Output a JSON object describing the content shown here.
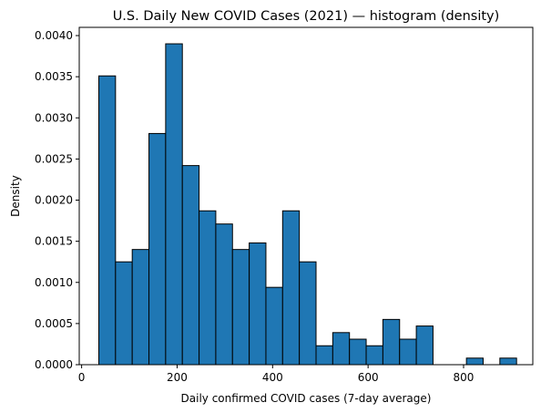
{
  "chart_data": {
    "type": "bar",
    "title": "U.S. Daily New COVID Cases (2021) — histogram (density)",
    "xlabel": "Daily confirmed COVID cases (7-day average)",
    "ylabel": "Density",
    "xlim": [
      -5,
      945
    ],
    "ylim": [
      0,
      0.0041
    ],
    "grid": false,
    "x_ticks": [
      {
        "value": 0,
        "label": "0"
      },
      {
        "value": 200,
        "label": "200"
      },
      {
        "value": 400,
        "label": "400"
      },
      {
        "value": 600,
        "label": "600"
      },
      {
        "value": 800,
        "label": "800"
      }
    ],
    "y_ticks": [
      {
        "value": 0,
        "label": "0.0000"
      },
      {
        "value": 0.0005,
        "label": "0.0005"
      },
      {
        "value": 0.001,
        "label": "0.0010"
      },
      {
        "value": 0.0015,
        "label": "0.0015"
      },
      {
        "value": 0.002,
        "label": "0.0020"
      },
      {
        "value": 0.0025,
        "label": "0.0025"
      },
      {
        "value": 0.003,
        "label": "0.0030"
      },
      {
        "value": 0.0035,
        "label": "0.0035"
      },
      {
        "value": 0.004,
        "label": "0.0040"
      }
    ],
    "bin_edges": [
      36,
      71,
      106,
      141,
      176,
      211,
      246,
      281,
      316,
      351,
      386,
      421,
      456,
      491,
      526,
      561,
      596,
      631,
      666,
      701,
      736,
      771,
      806,
      841,
      876,
      911
    ],
    "values": [
      0.00351,
      0.00125,
      0.0014,
      0.00281,
      0.0039,
      0.00242,
      0.00187,
      0.00171,
      0.0014,
      0.00148,
      0.00094,
      0.00187,
      0.00125,
      0.00023,
      0.00039,
      0.00031,
      0.00023,
      0.00055,
      0.00031,
      0.00047,
      0,
      0,
      8e-05,
      0,
      8e-05
    ],
    "bar_color": "#1f77b4",
    "edge_color": "#000000"
  }
}
